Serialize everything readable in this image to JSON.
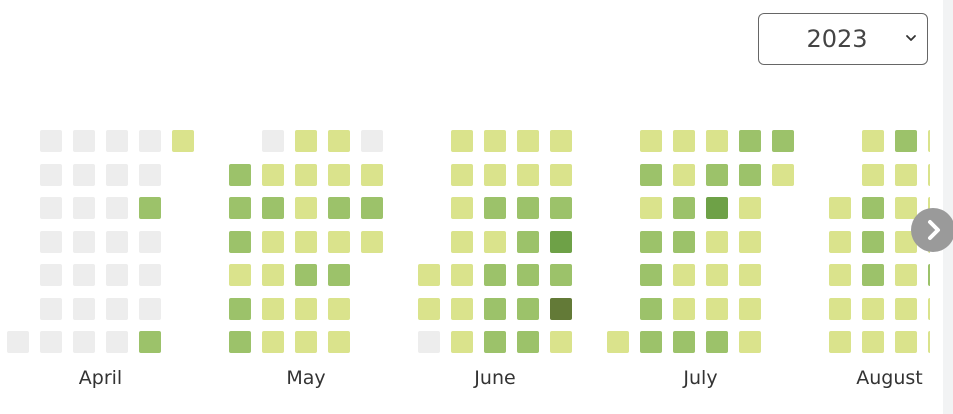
{
  "year_select": {
    "value": "2023",
    "icon": "chevron-down-icon"
  },
  "next_button": {
    "icon": "chevron-right-icon"
  },
  "palette": {
    "0": "#ededed",
    "1": "#dae38c",
    "2": "#9cc26a",
    "3": "#6ea147",
    "4": "#637a37"
  },
  "heatmap": {
    "months": [
      {
        "label": "April",
        "weeks": [
          [
            null,
            null,
            null,
            null,
            null,
            null,
            0
          ],
          [
            0,
            0,
            0,
            0,
            0,
            0,
            0
          ],
          [
            0,
            0,
            0,
            0,
            0,
            0,
            0
          ],
          [
            0,
            0,
            0,
            0,
            0,
            0,
            0
          ],
          [
            0,
            0,
            2,
            0,
            0,
            0,
            2
          ],
          [
            1,
            null,
            null,
            null,
            null,
            null,
            null
          ]
        ]
      },
      {
        "label": "May",
        "weeks": [
          [
            null,
            2,
            2,
            2,
            1,
            2,
            2
          ],
          [
            0,
            1,
            2,
            1,
            1,
            1,
            1
          ],
          [
            1,
            1,
            1,
            1,
            2,
            1,
            1
          ],
          [
            1,
            1,
            2,
            1,
            2,
            1,
            1
          ],
          [
            0,
            1,
            2,
            1,
            null,
            null,
            null
          ]
        ]
      },
      {
        "label": "June",
        "weeks": [
          [
            null,
            null,
            null,
            null,
            1,
            1,
            0
          ],
          [
            1,
            1,
            1,
            1,
            1,
            1,
            1
          ],
          [
            1,
            1,
            2,
            1,
            2,
            2,
            2
          ],
          [
            1,
            1,
            2,
            2,
            2,
            2,
            2
          ],
          [
            1,
            1,
            2,
            3,
            2,
            4,
            1
          ]
        ]
      },
      {
        "label": "July",
        "weeks": [
          [
            null,
            null,
            null,
            null,
            null,
            null,
            1
          ],
          [
            1,
            2,
            1,
            2,
            2,
            2,
            2
          ],
          [
            1,
            1,
            2,
            2,
            1,
            1,
            2
          ],
          [
            1,
            2,
            3,
            1,
            1,
            1,
            2
          ],
          [
            2,
            2,
            1,
            1,
            1,
            1,
            1
          ],
          [
            2,
            1,
            null,
            null,
            null,
            null,
            null
          ]
        ]
      },
      {
        "label": "August",
        "weeks": [
          [
            null,
            null,
            1,
            1,
            1,
            1,
            1
          ],
          [
            1,
            1,
            2,
            2,
            2,
            1,
            1
          ],
          [
            2,
            1,
            1,
            1,
            1,
            1,
            1
          ],
          [
            1,
            1,
            1,
            1,
            2,
            1,
            1
          ]
        ]
      }
    ]
  }
}
